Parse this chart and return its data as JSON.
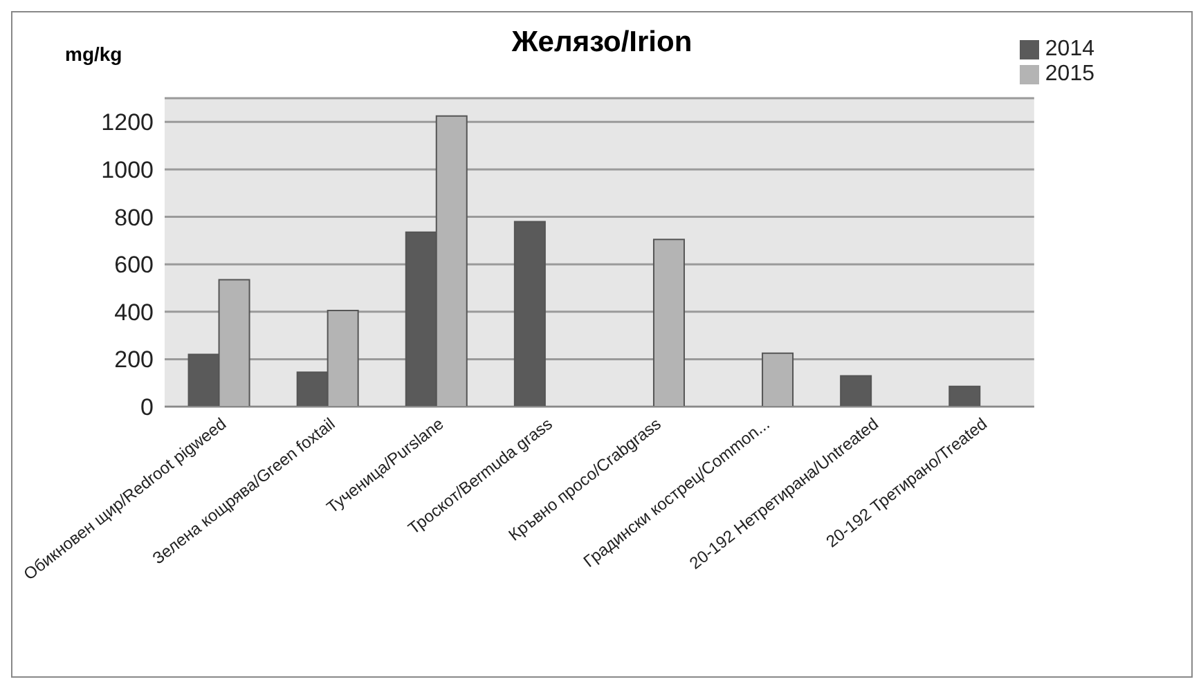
{
  "chart_data": {
    "type": "bar",
    "title": "Желязо/Irion",
    "ylabel": "mg/kg",
    "categories": [
      "Обикновен щир/Redroot pigweed",
      "Зелена кощрява/Green foxtail",
      "Тученица/Purslane",
      "Троскот/Bermuda grass",
      "Кръвно просо/Crabgrass",
      "Градински кострец/Common...",
      "20-192 Нетретирана/Untreated",
      "20-192 Третирано/Treated"
    ],
    "series": [
      {
        "name": "2014",
        "color": "#5a5a5a",
        "values": [
          220,
          145,
          735,
          780,
          null,
          null,
          130,
          85
        ]
      },
      {
        "name": "2015",
        "color": "#b4b4b4",
        "values": [
          535,
          405,
          1225,
          null,
          705,
          225,
          null,
          null
        ]
      }
    ],
    "ylim": [
      0,
      1300
    ],
    "yticks": [
      0,
      200,
      400,
      600,
      800,
      1000,
      1200
    ],
    "grid": "y",
    "legend": "top right"
  }
}
